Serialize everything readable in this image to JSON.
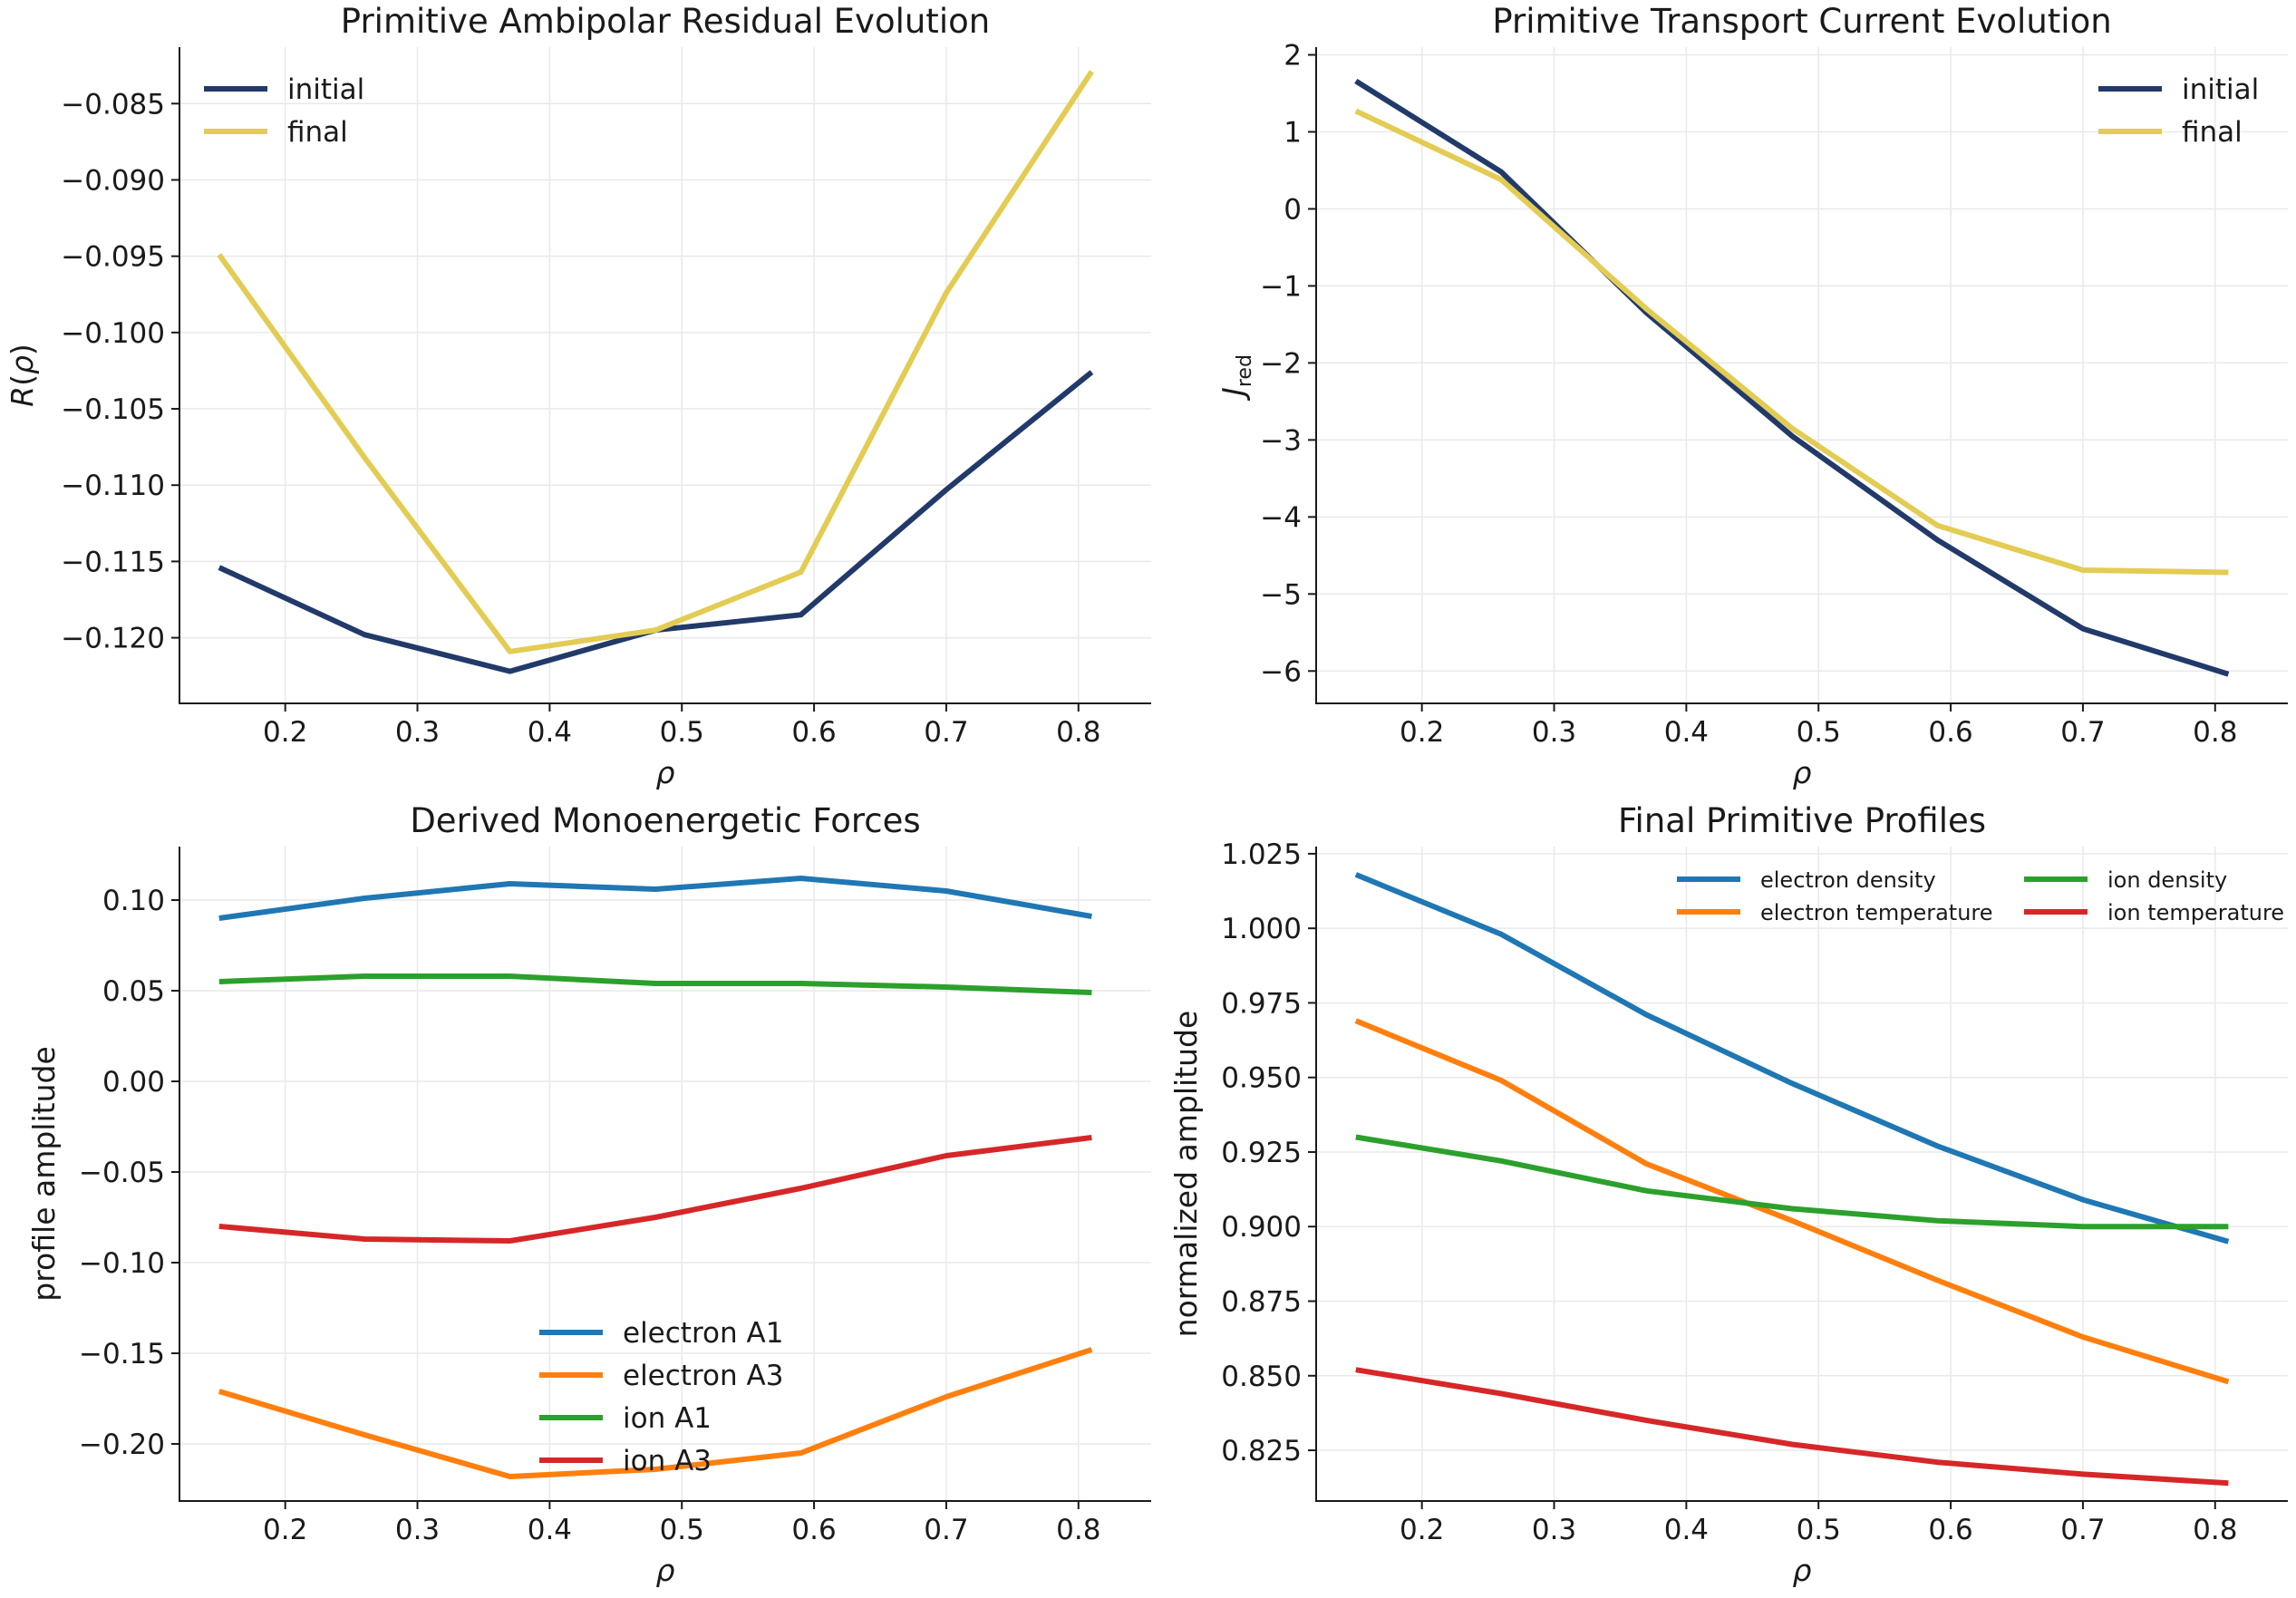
{
  "chart_data": [
    {
      "type": "line",
      "title": "Primitive Ambipolar Residual Evolution",
      "xlabel": "ρ",
      "ylabel": "R(ρ)",
      "x": [
        0.15,
        0.26,
        0.37,
        0.48,
        0.59,
        0.7,
        0.81
      ],
      "xlim": [
        0.12,
        0.855
      ],
      "ylim": [
        -0.1243,
        -0.0813
      ],
      "xticks": [
        "0.2",
        "0.3",
        "0.4",
        "0.5",
        "0.6",
        "0.7",
        "0.8"
      ],
      "yticks": [
        "−0.085",
        "−0.090",
        "−0.095",
        "−0.100",
        "−0.105",
        "−0.110",
        "−0.115",
        "−0.120"
      ],
      "legend_position": "upper-left",
      "series": [
        {
          "name": "initial",
          "color": "#223a6a",
          "values": [
            -0.1154,
            -0.1198,
            -0.1222,
            -0.1195,
            -0.1185,
            -0.1103,
            -0.1026
          ]
        },
        {
          "name": "final",
          "color": "#e3cc54",
          "values": [
            -0.0949,
            -0.1082,
            -0.1209,
            -0.1195,
            -0.1157,
            -0.0974,
            -0.0829
          ]
        }
      ],
      "grid": true
    },
    {
      "type": "line",
      "title": "Primitive Transport Current Evolution",
      "xlabel": "ρ",
      "ylabel": "J_red",
      "x": [
        0.15,
        0.26,
        0.37,
        0.48,
        0.59,
        0.7,
        0.81
      ],
      "xlim": [
        0.12,
        0.855
      ],
      "ylim": [
        -6.42,
        2.1
      ],
      "xticks": [
        "0.2",
        "0.3",
        "0.4",
        "0.5",
        "0.6",
        "0.7",
        "0.8"
      ],
      "yticks": [
        "2",
        "1",
        "0",
        "−1",
        "−2",
        "−3",
        "−4",
        "−5",
        "−6"
      ],
      "legend_position": "upper-right",
      "series": [
        {
          "name": "initial",
          "color": "#223a6a",
          "values": [
            1.66,
            0.48,
            -1.35,
            -2.95,
            -4.3,
            -5.45,
            -6.04
          ]
        },
        {
          "name": "final",
          "color": "#e3cc54",
          "values": [
            1.27,
            0.38,
            -1.3,
            -2.85,
            -4.11,
            -4.69,
            -4.72
          ]
        }
      ],
      "grid": true
    },
    {
      "type": "line",
      "title": "Derived Monoenergetic Forces",
      "xlabel": "ρ",
      "ylabel": "profile amplitude",
      "x": [
        0.15,
        0.26,
        0.37,
        0.48,
        0.59,
        0.7,
        0.81
      ],
      "xlim": [
        0.12,
        0.855
      ],
      "ylim": [
        -0.2315,
        0.1295
      ],
      "xticks": [
        "0.2",
        "0.3",
        "0.4",
        "0.5",
        "0.6",
        "0.7",
        "0.8"
      ],
      "yticks": [
        "0.10",
        "0.05",
        "0.00",
        "−0.05",
        "−0.10",
        "−0.15",
        "−0.20"
      ],
      "legend_position": "lower-center",
      "series": [
        {
          "name": "electron A1",
          "color": "#1f77b4",
          "values": [
            0.09,
            0.101,
            0.109,
            0.106,
            0.112,
            0.105,
            0.091
          ]
        },
        {
          "name": "electron A3",
          "color": "#ff7f0e",
          "values": [
            -0.171,
            -0.195,
            -0.218,
            -0.214,
            -0.205,
            -0.174,
            -0.148
          ]
        },
        {
          "name": "ion A1",
          "color": "#2ca02c",
          "values": [
            0.055,
            0.058,
            0.058,
            0.054,
            0.054,
            0.052,
            0.049
          ]
        },
        {
          "name": "ion A3",
          "color": "#d62728",
          "values": [
            -0.08,
            -0.087,
            -0.088,
            -0.075,
            -0.059,
            -0.041,
            -0.031
          ]
        }
      ],
      "grid": true
    },
    {
      "type": "line",
      "title": "Final Primitive Profiles",
      "xlabel": "ρ",
      "ylabel": "normalized amplitude",
      "x": [
        0.15,
        0.26,
        0.37,
        0.48,
        0.59,
        0.7,
        0.81
      ],
      "xlim": [
        0.12,
        0.855
      ],
      "ylim": [
        0.808,
        1.0274
      ],
      "xticks": [
        "0.2",
        "0.3",
        "0.4",
        "0.5",
        "0.6",
        "0.7",
        "0.8"
      ],
      "yticks": [
        "1.025",
        "1.000",
        "0.975",
        "0.950",
        "0.925",
        "0.900",
        "0.875",
        "0.850",
        "0.825"
      ],
      "legend_position": "upper-right",
      "legend_columns": 2,
      "series": [
        {
          "name": "electron density",
          "color": "#1f77b4",
          "values": [
            1.018,
            0.998,
            0.971,
            0.948,
            0.927,
            0.909,
            0.895
          ]
        },
        {
          "name": "electron temperature",
          "color": "#ff7f0e",
          "values": [
            0.969,
            0.949,
            0.921,
            0.902,
            0.882,
            0.863,
            0.848
          ]
        },
        {
          "name": "ion density",
          "color": "#2ca02c",
          "values": [
            0.93,
            0.922,
            0.912,
            0.906,
            0.902,
            0.9,
            0.9
          ]
        },
        {
          "name": "ion temperature",
          "color": "#d62728",
          "values": [
            0.852,
            0.844,
            0.835,
            0.827,
            0.821,
            0.817,
            0.814
          ]
        }
      ],
      "grid": true
    }
  ]
}
